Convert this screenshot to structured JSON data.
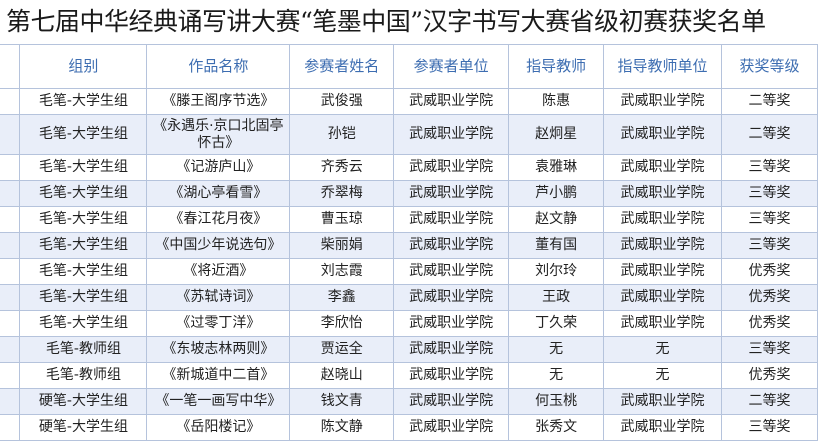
{
  "title": "第七届中华经典诵写讲大赛“笔墨中国”汉字书写大赛省级初赛获奖名单",
  "table": {
    "headers": [
      "组别",
      "作品名称",
      "参赛者姓名",
      "参赛者单位",
      "指导教师",
      "指导教师单位",
      "获奖等级"
    ],
    "rows": [
      [
        "毛笔-大学生组",
        "《滕王阁序节选》",
        "武俊强",
        "武威职业学院",
        "陈惠",
        "武威职业学院",
        "二等奖"
      ],
      [
        "毛笔-大学生组",
        "《永遇乐·京口北固亭怀古》",
        "孙铠",
        "武威职业学院",
        "赵炯星",
        "武威职业学院",
        "二等奖"
      ],
      [
        "毛笔-大学生组",
        "《记游庐山》",
        "齐秀云",
        "武威职业学院",
        "袁雅琳",
        "武威职业学院",
        "三等奖"
      ],
      [
        "毛笔-大学生组",
        "《湖心亭看雪》",
        "乔翠梅",
        "武威职业学院",
        "芦小鹏",
        "武威职业学院",
        "三等奖"
      ],
      [
        "毛笔-大学生组",
        "《春江花月夜》",
        "曹玉琼",
        "武威职业学院",
        "赵文静",
        "武威职业学院",
        "三等奖"
      ],
      [
        "毛笔-大学生组",
        "《中国少年说选句》",
        "柴丽娟",
        "武威职业学院",
        "董有国",
        "武威职业学院",
        "三等奖"
      ],
      [
        "毛笔-大学生组",
        "《将近酒》",
        "刘志霞",
        "武威职业学院",
        "刘尔玲",
        "武威职业学院",
        "优秀奖"
      ],
      [
        "毛笔-大学生组",
        "《苏轼诗词》",
        "李鑫",
        "武威职业学院",
        "王政",
        "武威职业学院",
        "优秀奖"
      ],
      [
        "毛笔-大学生组",
        "《过零丁洋》",
        "李欣怡",
        "武威职业学院",
        "丁久荣",
        "武威职业学院",
        "优秀奖"
      ],
      [
        "毛笔-教师组",
        "《东坡志林两则》",
        "贾运全",
        "武威职业学院",
        "无",
        "无",
        "三等奖"
      ],
      [
        "毛笔-教师组",
        "《新城道中二首》",
        "赵晓山",
        "武威职业学院",
        "无",
        "无",
        "优秀奖"
      ],
      [
        "硬笔-大学生组",
        "《一笔一画写中华》",
        "钱文青",
        "武威职业学院",
        "何玉桃",
        "武威职业学院",
        "二等奖"
      ],
      [
        "硬笔-大学生组",
        "《岳阳楼记》",
        "陈文静",
        "武威职业学院",
        "张秀文",
        "武威职业学院",
        "三等奖"
      ]
    ]
  }
}
